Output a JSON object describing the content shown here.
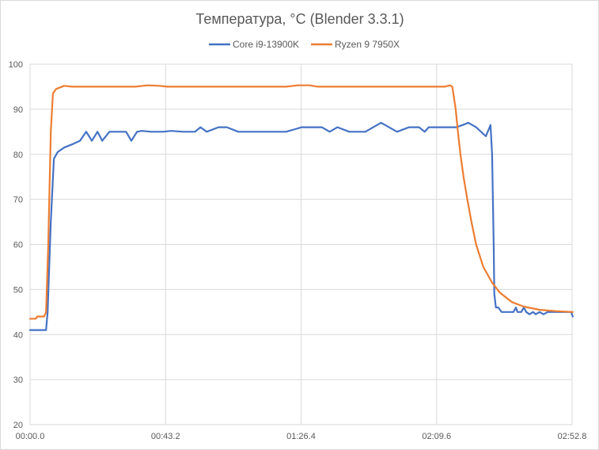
{
  "chart_data": {
    "type": "line",
    "title": "Температура, °C (Blender 3.3.1)",
    "xlabel": "",
    "ylabel": "",
    "xlim": [
      0,
      172.8
    ],
    "ylim": [
      20,
      100
    ],
    "grid": true,
    "legend_position": "top",
    "x_ticks": [
      0,
      43.2,
      86.4,
      129.6,
      172.8
    ],
    "x_tick_labels": [
      "00:00.0",
      "00:43.2",
      "01:26.4",
      "02:09.6",
      "02:52.8"
    ],
    "y_ticks": [
      20,
      30,
      40,
      50,
      60,
      70,
      80,
      90,
      100
    ],
    "y_tick_labels": [
      "20",
      "30",
      "40",
      "50",
      "60",
      "70",
      "80",
      "90",
      "100"
    ],
    "series": [
      {
        "name": "Core i9-13900K",
        "color": "#4472C4",
        "x": [
          0,
          5.1,
          5.6,
          6.6,
          7.6,
          8.8,
          10.9,
          13.4,
          15.9,
          17.9,
          19.7,
          21.5,
          23.0,
          25.3,
          27.8,
          30.6,
          32.3,
          34.1,
          35.6,
          38.7,
          42.4,
          45.0,
          48.8,
          52.6,
          54.3,
          56.3,
          60.1,
          62.7,
          66.4,
          71.5,
          76.5,
          81.6,
          84.1,
          86.6,
          93.0,
          95.5,
          98.0,
          101.8,
          106.9,
          109.4,
          111.9,
          117.0,
          120.8,
          124.0,
          125.8,
          127.1,
          135.9,
          137.9,
          139.7,
          142.2,
          145.3,
          146.8,
          147.3,
          147.8,
          148.0,
          148.5,
          149.3,
          150.3,
          154.1,
          154.9,
          155.4,
          156.6,
          157.4,
          158.2,
          159.2,
          160.4,
          161.2,
          162.4,
          163.7,
          165.0,
          172.5,
          173.0
        ],
        "y": [
          41,
          41,
          45,
          65,
          79,
          80.5,
          81.5,
          82.2,
          83,
          85,
          83,
          85,
          83,
          85,
          85,
          85,
          83,
          85,
          85.2,
          85,
          85,
          85.2,
          85,
          85,
          86,
          85,
          86,
          86,
          85,
          85,
          85,
          85,
          85.5,
          86,
          86,
          85,
          86,
          85,
          85,
          86,
          87,
          85,
          86,
          86,
          85,
          86,
          86,
          86.5,
          87,
          86,
          84,
          86.5,
          80,
          60,
          49,
          46,
          46,
          45,
          45,
          46,
          45,
          45,
          46,
          45,
          44.5,
          45,
          44.5,
          45,
          44.5,
          45,
          45,
          44
        ]
      },
      {
        "name": "Ryzen 9 7950X",
        "color": "#ED7D31",
        "x": [
          0,
          1.8,
          2.3,
          4.5,
          5.1,
          5.8,
          6.6,
          7.3,
          8.3,
          10.9,
          13.4,
          33.6,
          37.4,
          41.2,
          43.7,
          81.6,
          85.4,
          89.2,
          91.7,
          132.1,
          133.9,
          134.6,
          135.7,
          136.4,
          137.2,
          138.2,
          139.4,
          140.7,
          142.2,
          144.5,
          147.3,
          149.8,
          153.6,
          157.4,
          162.4,
          167.5,
          173.0
        ],
        "y": [
          43.5,
          43.5,
          44,
          44,
          45,
          60,
          85,
          93.5,
          94.5,
          95.2,
          95,
          95,
          95.3,
          95.2,
          95,
          95,
          95.3,
          95.3,
          95,
          95,
          95.3,
          95,
          90,
          85,
          80,
          75,
          70,
          65,
          60,
          55,
          51.5,
          49.3,
          47.2,
          46.2,
          45.5,
          45.2,
          45
        ]
      }
    ]
  }
}
